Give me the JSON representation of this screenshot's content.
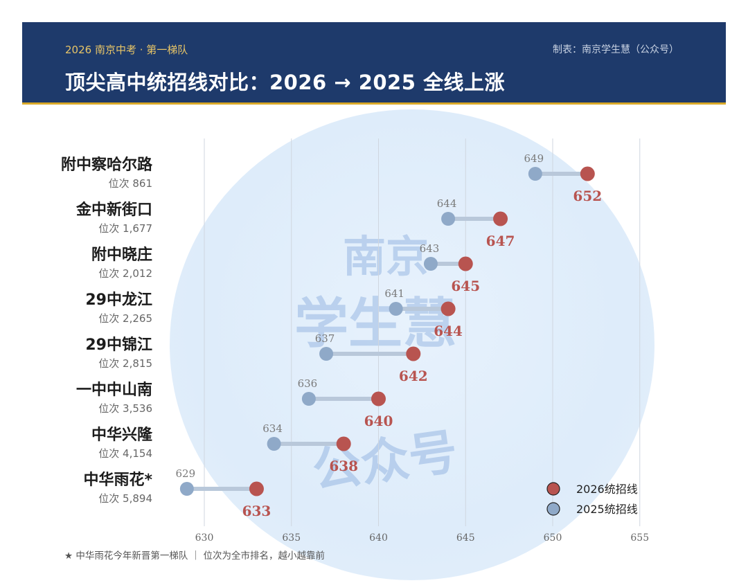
{
  "header": {
    "kicker": "2026 南京中考 · 第一梯队",
    "credit": "制表：南京学生慧（公众号）",
    "title": "顶尖高中统招线对比：2026 → 2025 全线上涨"
  },
  "footnote": "★ 中华雨花今年新晋第一梯队 ｜ 位次为全市排名，越小越靠前",
  "watermark": {
    "line1": "南京",
    "line2": "学生慧",
    "line3": "公众号"
  },
  "colors": {
    "y2026": "#b85450",
    "y2025": "#8fa9c8",
    "header_bg": "#1e3a6b",
    "accent": "#d9a928"
  },
  "chart_data": {
    "type": "dumbbell",
    "xlim": [
      627.5,
      656
    ],
    "xticks": [
      630,
      635,
      640,
      645,
      650,
      655
    ],
    "grid": true,
    "legend_position": "bottom-right",
    "categories": [
      "附中察哈尔路",
      "金中新街口",
      "附中晓庄",
      "29中龙江",
      "29中锦江",
      "一中中山南",
      "中华兴隆",
      "中华雨花*"
    ],
    "rank_labels": [
      "位次 861",
      "位次 1,677",
      "位次 2,012",
      "位次 2,265",
      "位次 2,815",
      "位次 3,536",
      "位次 4,154",
      "位次 5,894"
    ],
    "series": [
      {
        "name": "2026统招线",
        "values": [
          652,
          647,
          645,
          644,
          642,
          640,
          638,
          633
        ]
      },
      {
        "name": "2025统招线",
        "values": [
          649,
          644,
          643,
          641,
          637,
          636,
          634,
          629
        ]
      }
    ]
  }
}
